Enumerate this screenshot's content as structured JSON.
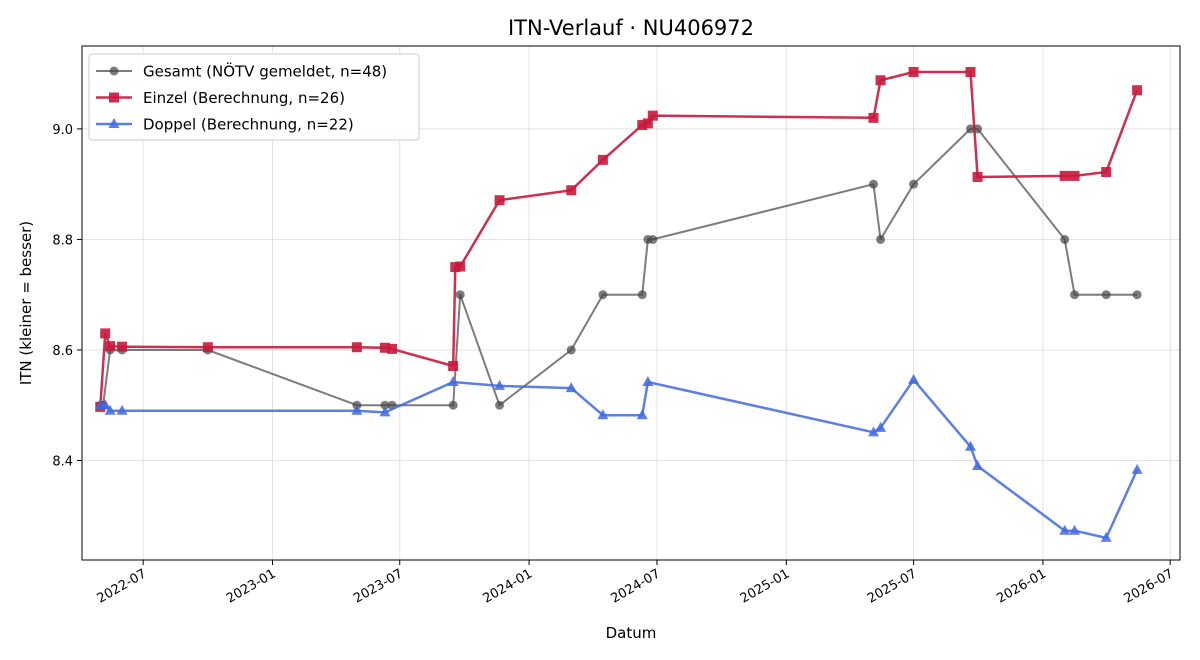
{
  "chart_data": {
    "type": "line",
    "title": "ITN-Verlauf · NU406972",
    "xlabel": "Datum",
    "ylabel": "ITN  (kleiner = besser)",
    "x_range": [
      "2022-04-05",
      "2026-07-15"
    ],
    "ylim": [
      8.22,
      9.15
    ],
    "x_ticks": [
      "2022-07-01",
      "2023-01-01",
      "2023-07-01",
      "2024-01-01",
      "2024-07-01",
      "2025-01-01",
      "2025-07-01",
      "2026-01-01",
      "2026-07-01"
    ],
    "x_tick_labels": [
      "2022-07",
      "2023-01",
      "2023-07",
      "2024-01",
      "2024-07",
      "2025-01",
      "2025-07",
      "2026-01",
      "2026-07"
    ],
    "y_ticks": [
      8.4,
      8.6,
      8.8,
      9.0
    ],
    "y_tick_labels": [
      "8.4",
      "8.6",
      "8.8",
      "9.0"
    ],
    "grid": true,
    "legend_position": "top-left",
    "series": [
      {
        "name": "Gesamt (NÖTV gemeldet, n=48)",
        "color": "#444444",
        "marker": "circle",
        "points": [
          [
            "2022-05-01",
            8.5
          ],
          [
            "2022-05-05",
            8.5
          ],
          [
            "2022-05-15",
            8.6
          ],
          [
            "2022-06-01",
            8.6
          ],
          [
            "2022-10-01",
            8.6
          ],
          [
            "2023-05-01",
            8.5
          ],
          [
            "2023-06-10",
            8.5
          ],
          [
            "2023-06-20",
            8.5
          ],
          [
            "2023-09-15",
            8.5
          ],
          [
            "2023-09-25",
            8.7
          ],
          [
            "2023-11-20",
            8.5
          ],
          [
            "2024-03-01",
            8.6
          ],
          [
            "2024-04-15",
            8.7
          ],
          [
            "2024-06-10",
            8.7
          ],
          [
            "2024-06-18",
            8.8
          ],
          [
            "2024-06-25",
            8.8
          ],
          [
            "2025-05-05",
            8.9
          ],
          [
            "2025-05-15",
            8.8
          ],
          [
            "2025-07-01",
            8.9
          ],
          [
            "2025-09-20",
            9.0
          ],
          [
            "2025-09-30",
            9.0
          ],
          [
            "2026-02-01",
            8.8
          ],
          [
            "2026-02-15",
            8.7
          ],
          [
            "2026-04-01",
            8.7
          ],
          [
            "2026-05-15",
            8.7
          ]
        ]
      },
      {
        "name": "Einzel (Berechnung, n=26)",
        "color": "#c8193c",
        "marker": "square",
        "points": [
          [
            "2022-05-01",
            8.497
          ],
          [
            "2022-05-08",
            8.63
          ],
          [
            "2022-05-15",
            8.607
          ],
          [
            "2022-06-01",
            8.606
          ],
          [
            "2022-10-01",
            8.605
          ],
          [
            "2023-05-01",
            8.605
          ],
          [
            "2023-06-10",
            8.604
          ],
          [
            "2023-06-20",
            8.602
          ],
          [
            "2023-09-15",
            8.571
          ],
          [
            "2023-09-18",
            8.75
          ],
          [
            "2023-09-25",
            8.751
          ],
          [
            "2023-11-20",
            8.871
          ],
          [
            "2024-03-01",
            8.889
          ],
          [
            "2024-04-15",
            8.944
          ],
          [
            "2024-06-10",
            9.007
          ],
          [
            "2024-06-18",
            9.01
          ],
          [
            "2024-06-25",
            9.024
          ],
          [
            "2025-05-05",
            9.02
          ],
          [
            "2025-05-15",
            9.088
          ],
          [
            "2025-07-01",
            9.103
          ],
          [
            "2025-09-20",
            9.103
          ],
          [
            "2025-09-30",
            8.913
          ],
          [
            "2026-02-01",
            8.915
          ],
          [
            "2026-02-15",
            8.915
          ],
          [
            "2026-04-01",
            8.922
          ],
          [
            "2026-05-15",
            9.07
          ]
        ]
      },
      {
        "name": "Doppel (Berechnung, n=22)",
        "color": "#4169e1",
        "marker": "triangle",
        "points": [
          [
            "2022-05-01",
            8.5
          ],
          [
            "2022-05-08",
            8.5
          ],
          [
            "2022-05-15",
            8.49
          ],
          [
            "2022-06-01",
            8.49
          ],
          [
            "2023-05-01",
            8.49
          ],
          [
            "2023-06-10",
            8.487
          ],
          [
            "2023-09-15",
            8.542
          ],
          [
            "2023-11-20",
            8.535
          ],
          [
            "2024-03-01",
            8.531
          ],
          [
            "2024-04-15",
            8.482
          ],
          [
            "2024-06-10",
            8.482
          ],
          [
            "2024-06-18",
            8.542
          ],
          [
            "2025-05-05",
            8.451
          ],
          [
            "2025-05-15",
            8.459
          ],
          [
            "2025-07-01",
            8.546
          ],
          [
            "2025-09-20",
            8.425
          ],
          [
            "2025-09-30",
            8.39
          ],
          [
            "2026-02-01",
            8.273
          ],
          [
            "2026-02-15",
            8.273
          ],
          [
            "2026-04-01",
            8.26
          ],
          [
            "2026-05-15",
            8.383
          ]
        ]
      }
    ]
  }
}
